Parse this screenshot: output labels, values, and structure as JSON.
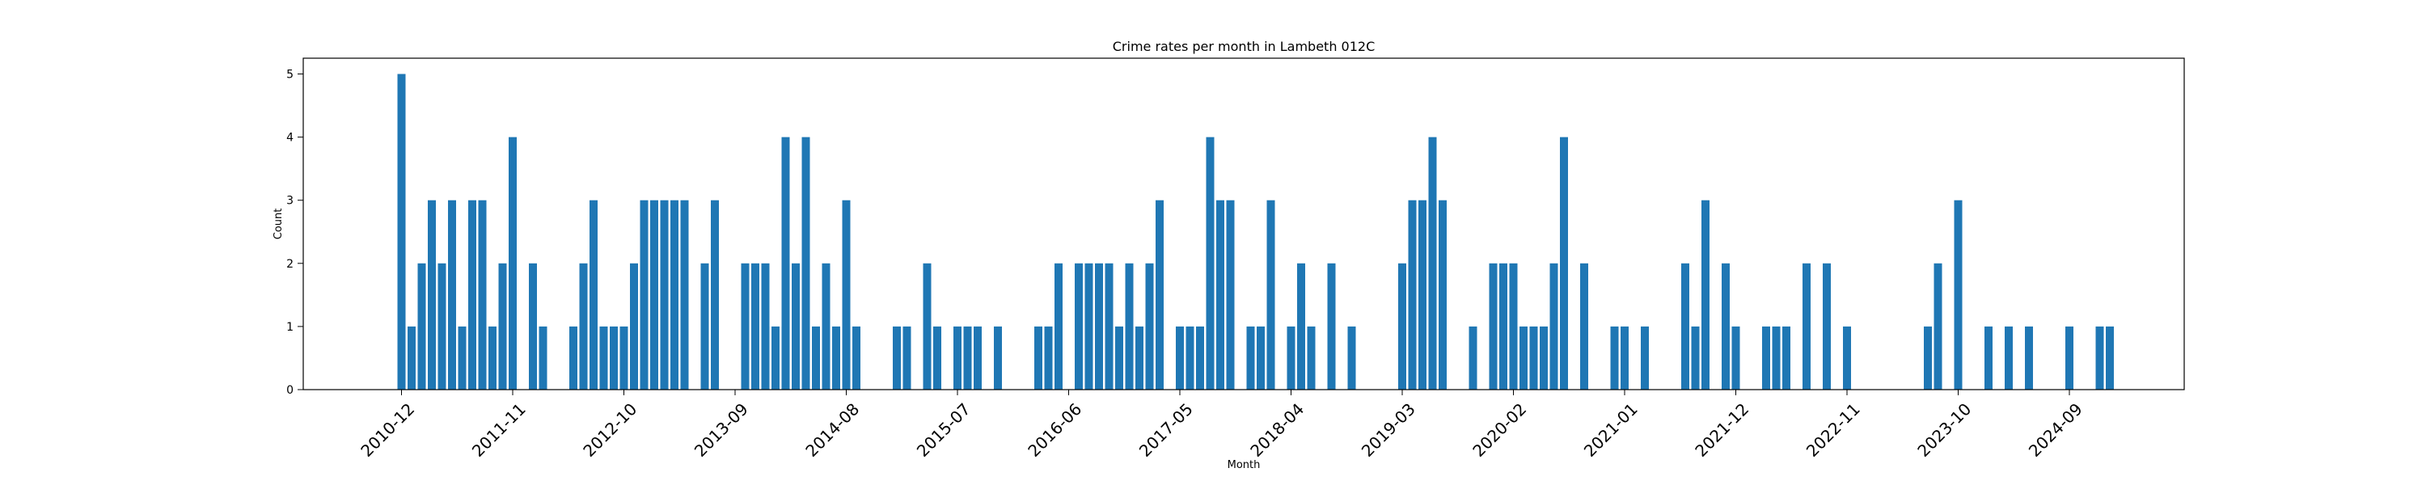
{
  "chart_data": {
    "type": "bar",
    "title": "Crime rates per month in Lambeth 012C",
    "xlabel": "Month",
    "ylabel": "Count",
    "ylim": [
      0,
      5.25
    ],
    "yticks": [
      0,
      1,
      2,
      3,
      4,
      5
    ],
    "xticks": [
      "2010-12",
      "2011-11",
      "2012-10",
      "2013-09",
      "2014-08",
      "2015-07",
      "2016-06",
      "2017-05",
      "2018-04",
      "2019-03",
      "2020-02",
      "2021-01",
      "2021-12",
      "2022-11",
      "2023-10",
      "2024-09"
    ],
    "grid": false,
    "bar_color": "#1f77b4",
    "categories": [
      "2010-12",
      "2011-01",
      "2011-02",
      "2011-03",
      "2011-04",
      "2011-05",
      "2011-06",
      "2011-07",
      "2011-08",
      "2011-09",
      "2011-10",
      "2011-11",
      "2012-01",
      "2012-02",
      "2012-05",
      "2012-06",
      "2012-07",
      "2012-08",
      "2012-09",
      "2012-10",
      "2012-11",
      "2012-12",
      "2013-01",
      "2013-02",
      "2013-03",
      "2013-04",
      "2013-06",
      "2013-07",
      "2013-10",
      "2013-11",
      "2013-12",
      "2014-01",
      "2014-02",
      "2014-03",
      "2014-04",
      "2014-05",
      "2014-06",
      "2014-07",
      "2014-08",
      "2014-09",
      "2015-01",
      "2015-02",
      "2015-04",
      "2015-05",
      "2015-07",
      "2015-08",
      "2015-09",
      "2015-11",
      "2016-03",
      "2016-04",
      "2016-05",
      "2016-07",
      "2016-08",
      "2016-09",
      "2016-10",
      "2016-11",
      "2016-12",
      "2017-01",
      "2017-02",
      "2017-03",
      "2017-05",
      "2017-06",
      "2017-07",
      "2017-08",
      "2017-09",
      "2017-10",
      "2017-12",
      "2018-01",
      "2018-02",
      "2018-04",
      "2018-05",
      "2018-06",
      "2018-08",
      "2018-10",
      "2019-03",
      "2019-04",
      "2019-05",
      "2019-06",
      "2019-07",
      "2019-10",
      "2019-12",
      "2020-01",
      "2020-02",
      "2020-03",
      "2020-04",
      "2020-05",
      "2020-06",
      "2020-07",
      "2020-09",
      "2020-12",
      "2021-01",
      "2021-03",
      "2021-07",
      "2021-08",
      "2021-09",
      "2021-11",
      "2021-12",
      "2022-03",
      "2022-04",
      "2022-05",
      "2022-07",
      "2022-09",
      "2022-11",
      "2023-07",
      "2023-08",
      "2023-10",
      "2024-01",
      "2024-03",
      "2024-05",
      "2024-09",
      "2024-12",
      "2025-01"
    ],
    "values": [
      5,
      1,
      2,
      3,
      2,
      3,
      1,
      3,
      3,
      1,
      2,
      4,
      2,
      1,
      1,
      2,
      3,
      1,
      1,
      1,
      2,
      3,
      3,
      3,
      3,
      3,
      2,
      3,
      2,
      2,
      2,
      1,
      4,
      2,
      4,
      1,
      2,
      1,
      3,
      1,
      1,
      1,
      2,
      1,
      1,
      1,
      1,
      1,
      1,
      1,
      2,
      2,
      2,
      2,
      2,
      1,
      2,
      1,
      2,
      3,
      1,
      1,
      1,
      4,
      3,
      3,
      1,
      1,
      3,
      1,
      2,
      1,
      2,
      1,
      2,
      3,
      3,
      4,
      3,
      1,
      2,
      2,
      2,
      1,
      1,
      1,
      2,
      4,
      2,
      1,
      1,
      1,
      2,
      1,
      3,
      2,
      1,
      1,
      1,
      1,
      2,
      2,
      1,
      1,
      2,
      3,
      1,
      1,
      1,
      1,
      1,
      1
    ]
  }
}
